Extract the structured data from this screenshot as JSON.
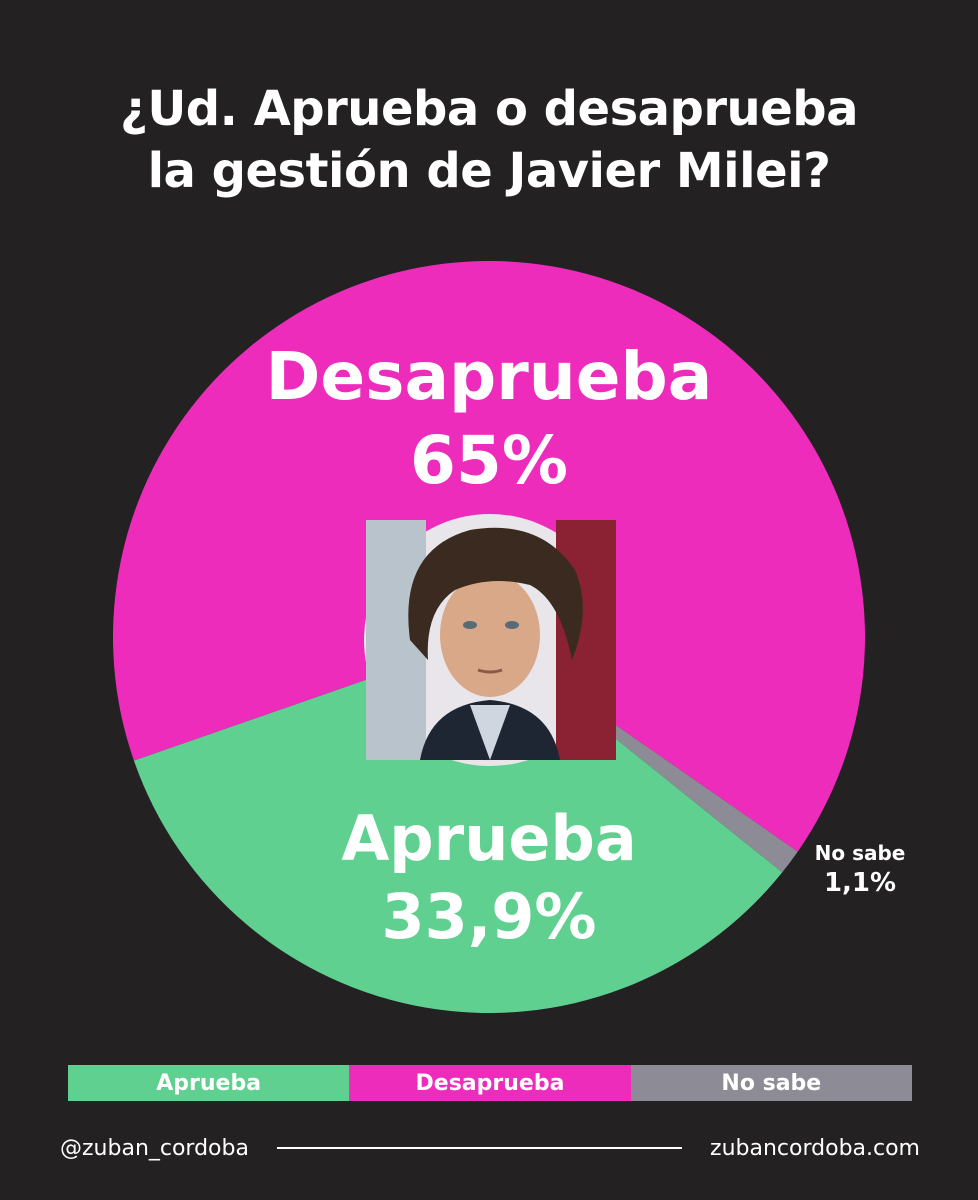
{
  "header": {
    "title_line1": "¿Ud. Aprueba o desaprueba",
    "title_line2": "la gestión de Javier Milei?"
  },
  "chart_data": {
    "type": "pie",
    "title": "¿Ud. Aprueba o desaprueba la gestión de Javier Milei?",
    "slices": [
      {
        "name": "Desaprueba",
        "value": 65,
        "label": "65%",
        "color": "#ee2cbc"
      },
      {
        "name": "No sabe",
        "value": 1.1,
        "label": "1,1%",
        "color": "#8d8c96"
      },
      {
        "name": "Aprueba",
        "value": 33.9,
        "label": "33,9%",
        "color": "#5fd08f"
      }
    ],
    "legend": {
      "placement": "bottom",
      "entries": [
        "Aprueba",
        "Desaprueba",
        "No sabe"
      ]
    }
  },
  "legend_labels": {
    "aprueba": "Aprueba",
    "desaprueba": "Desaprueba",
    "nosabe": "No sabe"
  },
  "footer": {
    "handle": "@zuban_cordoba",
    "website": "zubancordoba.com"
  },
  "colors": {
    "background": "#232122",
    "desaprueba": "#ee2cbc",
    "aprueba": "#5fd08f",
    "nosabe": "#8d8c96"
  }
}
